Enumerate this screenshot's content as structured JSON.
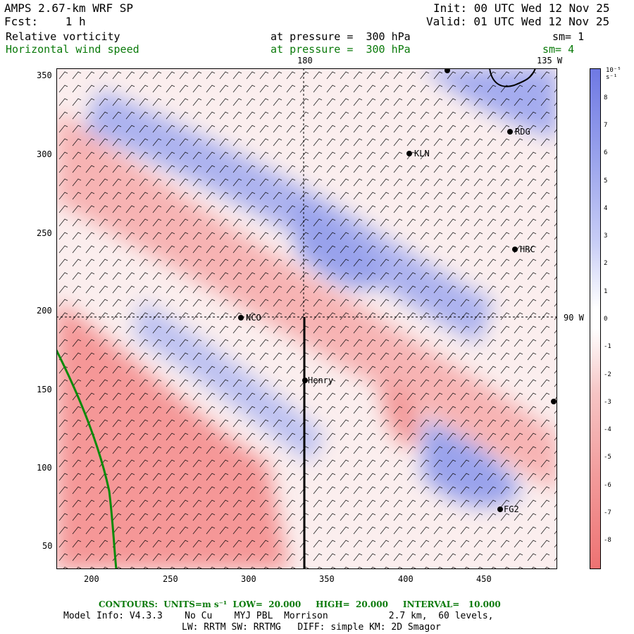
{
  "header": {
    "model": "AMPS 2.67-km WRF SP",
    "fcst": "Fcst:    1 h",
    "init": "Init: 00 UTC Wed 12 Nov 25",
    "valid": "Valid: 01 UTC Wed 12 Nov 25",
    "field1": "Relative vorticity",
    "field1_level": "at pressure =  300 hPa",
    "field1_sm": "sm= 1",
    "field2": "Horizontal wind speed",
    "field2_level": "at pressure =  300 hPa",
    "field2_sm": "sm= 4"
  },
  "map": {
    "lon_labels": [
      "180",
      "135 W",
      "90 W"
    ],
    "stations": [
      "RDG",
      "KLN",
      "HRC",
      "NCO",
      "Henry",
      "FG2"
    ],
    "x_ticks": [
      "200",
      "250",
      "300",
      "350",
      "400",
      "450"
    ],
    "y_ticks": [
      "350",
      "300",
      "250",
      "200",
      "150",
      "100",
      "50"
    ]
  },
  "colorbar": {
    "unit_label": "10⁻⁵ s⁻¹",
    "labels": [
      "8",
      "7",
      "6",
      "5",
      "4",
      "3",
      "2",
      "1",
      "0",
      "-1",
      "-2",
      "-3",
      "-4",
      "-5",
      "-6",
      "-7",
      "-8"
    ]
  },
  "footer": {
    "contours": "CONTOURS:  UNITS=m s⁻¹  LOW=  20.000     HIGH=  20.000     INTERVAL=   10.000",
    "model_info": "Model Info: V4.3.3    No Cu    MYJ PBL  Morrison           2.7 km,  60 levels,",
    "model_info2": "LW: RRTM SW: RRTMG   DIFF: simple KM: 2D Smagor"
  }
}
